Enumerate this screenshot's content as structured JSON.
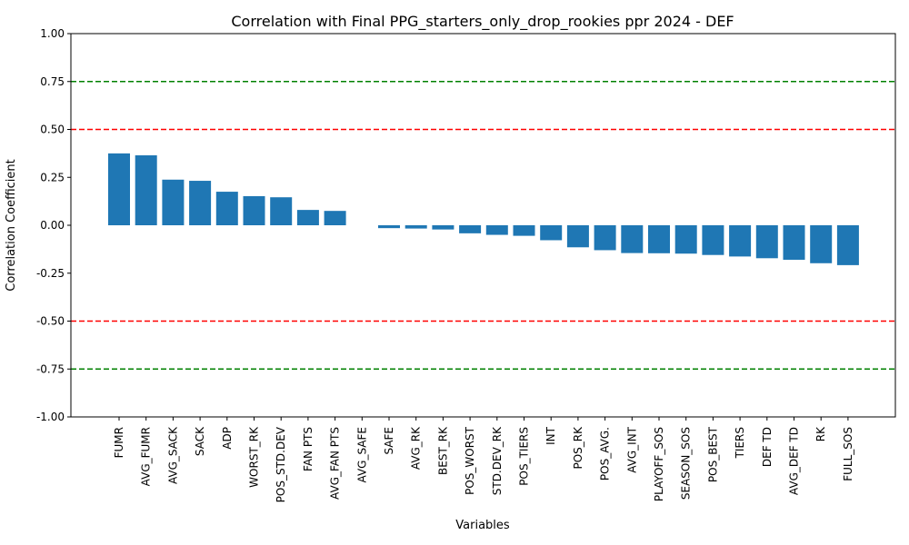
{
  "chart_data": {
    "type": "bar",
    "title": "Correlation with Final PPG_starters_only_drop_rookies ppr 2024 - DEF",
    "xlabel": "Variables",
    "ylabel": "Correlation Coefficient",
    "ylim": [
      -1.0,
      1.0
    ],
    "yticks": [
      "-1.00",
      "-0.75",
      "-0.50",
      "-0.25",
      "0.00",
      "0.25",
      "0.50",
      "0.75",
      "1.00"
    ],
    "grid": false,
    "bar_color": "#1f77b4",
    "categories": [
      "FUMR",
      "AVG_FUMR",
      "AVG_SACK",
      "SACK",
      "ADP",
      "WORST_RK",
      "POS_STD.DEV",
      "FAN PTS",
      "AVG_FAN PTS",
      "AVG_SAFE",
      "SAFE",
      "AVG_RK",
      "BEST_RK",
      "POS_WORST",
      "STD.DEV_RK",
      "POS_TIERS",
      "INT",
      "POS_RK",
      "POS_AVG.",
      "AVG_INT",
      "PLAYOFF_SOS",
      "SEASON_SOS",
      "POS_BEST",
      "TIERS",
      "DEF TD",
      "AVG_DEF TD",
      "RK",
      "FULL_SOS"
    ],
    "values": [
      0.375,
      0.365,
      0.238,
      0.232,
      0.175,
      0.152,
      0.146,
      0.08,
      0.075,
      0.0,
      -0.015,
      -0.017,
      -0.022,
      -0.042,
      -0.05,
      -0.055,
      -0.078,
      -0.115,
      -0.13,
      -0.145,
      -0.146,
      -0.148,
      -0.155,
      -0.163,
      -0.172,
      -0.18,
      -0.198,
      -0.208
    ],
    "reference_lines": [
      {
        "y": 0.75,
        "color": "#008000",
        "style": "dashed"
      },
      {
        "y": 0.5,
        "color": "#ff0000",
        "style": "dashed"
      },
      {
        "y": -0.5,
        "color": "#ff0000",
        "style": "dashed"
      },
      {
        "y": -0.75,
        "color": "#008000",
        "style": "dashed"
      }
    ]
  }
}
